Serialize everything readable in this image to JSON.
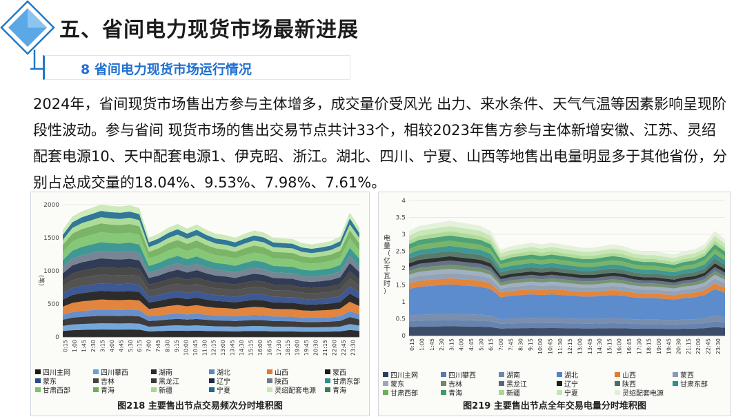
{
  "header": {
    "title": "五、省间电力现货市场最新进展",
    "subtitle": "8 省间电力现货市场运行情况"
  },
  "paragraph": "2024年，省间现货市场售出方参与主体增多，成交量价受风光 出力、来水条件、天气气温等因素影响呈现阶段性波动。参与省间 现货市场的售出交易节点共计33个，相较2023年售方参与主体新增安徽、江苏、灵绍配套电源10、天中配套电源1、伊克昭、浙江。湖北、四川、宁夏、山西等地售出电量明显多于其他省份，分别占总成交量的18.04%、9.53%、7.98%、7.61%。",
  "colors": {
    "accent": "#1f78c8",
    "subtitle_text": "#1f6fd0"
  },
  "chart_data": [
    {
      "type": "area",
      "title": "",
      "caption": "图218  主要售出节点交易频次分时堆积图",
      "ylabel": "(笔)",
      "ylim": [
        0,
        2000
      ],
      "yticks": [
        "0",
        "500",
        "1000",
        "1500",
        "2000"
      ],
      "xticks": [
        "0:15",
        "1:00",
        "1:45",
        "2:30",
        "3:15",
        "4:00",
        "4:45",
        "5:30",
        "6:15",
        "7:00",
        "7:45",
        "8:30",
        "9:15",
        "10:00",
        "10:45",
        "11:30",
        "12:15",
        "13:00",
        "13:45",
        "14:30",
        "15:15",
        "16:00",
        "16:45",
        "17:30",
        "18:15",
        "19:00",
        "19:45",
        "20:30",
        "21:15",
        "22:00",
        "22:45",
        "23:30"
      ],
      "legend": [
        "四川主网",
        "四川攀西",
        "湖南",
        "湖北",
        "山西",
        "蒙西",
        "蒙东",
        "吉林",
        "黑龙江",
        "辽宁",
        "陕西",
        "甘肃东部",
        "甘肃西部",
        "青海",
        "新疆",
        "宁夏",
        "灵绍配套电源",
        "青海"
      ],
      "colors": [
        "#1a1a1a",
        "#6aa0d8",
        "#2b2b2b",
        "#5b86c5",
        "#e07b2e",
        "#1a1a1a",
        "#2c4a8a",
        "#444444",
        "#3a3a3a",
        "#1f2a44",
        "#6b7b8c",
        "#2f8f8a",
        "#7cc36b",
        "#6fae5a",
        "#a8d890",
        "#1e6b8f",
        "#c8e8b4",
        "#3a7f52"
      ],
      "totals": [
        1620,
        1820,
        1900,
        1950,
        2000,
        1980,
        1970,
        1990,
        1950,
        1500,
        1560,
        1650,
        1710,
        1640,
        1700,
        1620,
        1560,
        1540,
        1500,
        1560,
        1610,
        1580,
        1500,
        1490,
        1480,
        1420,
        1400,
        1420,
        1450,
        1520,
        1880,
        1650
      ]
    },
    {
      "type": "area",
      "title": "",
      "caption": "图219  主要售出节点全年交易电量分时堆积图",
      "ylabel": "电量（亿千瓦时）",
      "ylim": [
        0,
        4
      ],
      "yticks": [
        "0",
        "0.5",
        "1",
        "1.5",
        "2",
        "2.5",
        "3",
        "3.5",
        "4"
      ],
      "xticks": [
        "0:15",
        "1:00",
        "1:45",
        "2:30",
        "3:15",
        "4:00",
        "4:45",
        "5:30",
        "6:15",
        "7:00",
        "7:45",
        "8:30",
        "9:15",
        "10:00",
        "10:45",
        "11:30",
        "12:15",
        "13:00",
        "13:45",
        "14:30",
        "15:15",
        "16:00",
        "16:45",
        "17:30",
        "18:15",
        "19:00",
        "19:45",
        "20:30",
        "21:15",
        "22:00",
        "22:45",
        "23:30"
      ],
      "legend": [
        "四川主网",
        "四川攀西",
        "湖南",
        "湖北",
        "山西",
        "蒙西",
        "蒙东",
        "吉林",
        "黑龙江",
        "辽宁",
        "陕西",
        "甘肃东部",
        "甘肃西部",
        "青海",
        "新疆",
        "宁夏",
        "灵绍配套电源"
      ],
      "colors": [
        "#2c3e5c",
        "#5a78a8",
        "#6f86a6",
        "#4f82c9",
        "#e07b2e",
        "#8a9bb0",
        "#98a8bc",
        "#6b8a64",
        "#56677d",
        "#1e1e1e",
        "#4b7060",
        "#2f8f8a",
        "#6fae5a",
        "#3e9a6a",
        "#a8d890",
        "#c3e4b0",
        "#e2f0d8"
      ],
      "totals": [
        3.1,
        3.25,
        3.3,
        3.35,
        3.4,
        3.35,
        3.3,
        3.25,
        3.1,
        2.55,
        2.65,
        2.7,
        2.75,
        2.7,
        2.75,
        2.7,
        2.65,
        2.6,
        2.6,
        2.65,
        2.7,
        2.65,
        2.55,
        2.5,
        2.5,
        2.45,
        2.4,
        2.5,
        2.55,
        2.7,
        3.1,
        2.85
      ]
    }
  ]
}
